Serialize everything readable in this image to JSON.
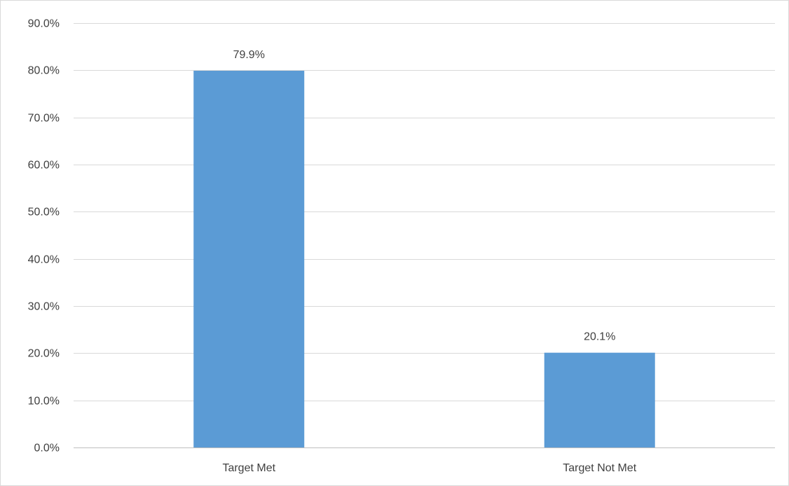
{
  "chart_data": {
    "type": "bar",
    "categories": [
      "Target Met",
      "Target Not Met"
    ],
    "values": [
      79.9,
      20.1
    ],
    "data_labels": [
      "79.9%",
      "20.1%"
    ],
    "title": "",
    "xlabel": "",
    "ylabel": "",
    "ylim": [
      0,
      90
    ],
    "yticks": [
      0,
      10,
      20,
      30,
      40,
      50,
      60,
      70,
      80,
      90
    ],
    "ytick_labels": [
      "0.0%",
      "10.0%",
      "20.0%",
      "30.0%",
      "40.0%",
      "50.0%",
      "60.0%",
      "70.0%",
      "80.0%",
      "90.0%"
    ],
    "grid": true,
    "legend": "none",
    "bar_color": "#5b9bd5",
    "grid_color": "#d9d9d9",
    "text_color": "#404040"
  }
}
